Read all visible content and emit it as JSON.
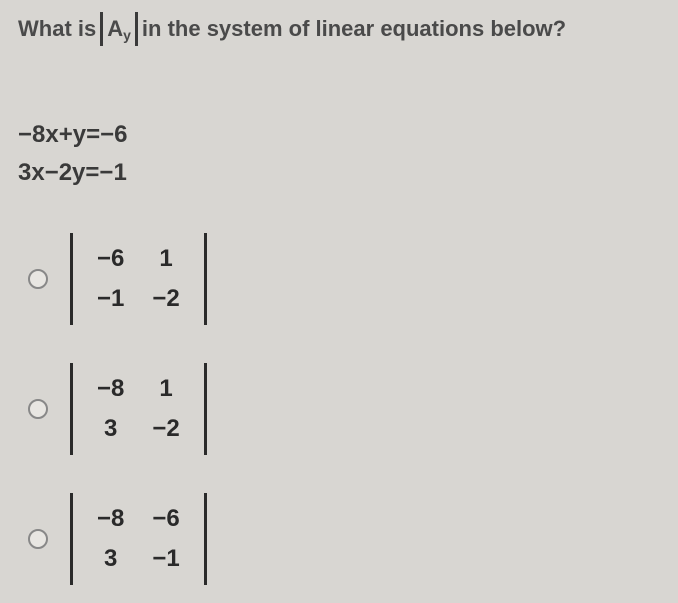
{
  "question": {
    "part1": "What is",
    "det_base": "A",
    "det_sub": "y",
    "part2": "in the system of linear equations below?"
  },
  "equations": {
    "line1": "−8x+y=−6",
    "line2": "3x−2y=−1"
  },
  "options": [
    {
      "a": "−6",
      "b": "1",
      "c": "−1",
      "d": "−2"
    },
    {
      "a": "−8",
      "b": "1",
      "c": "3",
      "d": "−2"
    },
    {
      "a": "−8",
      "b": "−6",
      "c": "3",
      "d": "−1"
    }
  ],
  "style": {
    "background": "#d8d6d2",
    "text_color": "#3a3a3a",
    "det_border_color": "#2a2a2a",
    "radio_border": "#888",
    "font_size_question": 22,
    "font_size_eq": 24,
    "font_size_cell": 24
  }
}
